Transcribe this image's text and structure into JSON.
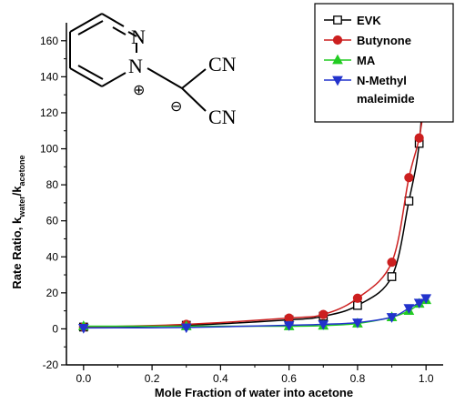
{
  "chart_data": {
    "type": "line",
    "xlabel": "Mole Fraction of water into acetone",
    "ylabel": "Rate Ratio, k",
    "ylabel_sub1": "water",
    "ylabel_mid": "/k",
    "ylabel_sub2": "acetone",
    "xlim": [
      -0.05,
      1.05
    ],
    "ylim": [
      -20,
      170
    ],
    "x_ticks": [
      "0.0",
      "0.2",
      "0.4",
      "0.6",
      "0.8",
      "1.0"
    ],
    "x_tick_values": [
      0,
      0.2,
      0.4,
      0.6,
      0.8,
      1.0
    ],
    "y_ticks": [
      "-20",
      "0",
      "20",
      "40",
      "60",
      "80",
      "100",
      "120",
      "140",
      "160"
    ],
    "y_tick_values": [
      -20,
      0,
      20,
      40,
      60,
      80,
      100,
      120,
      140,
      160
    ],
    "grid": false,
    "legend_position": "top-right",
    "series": [
      {
        "name": "EVK",
        "marker": "square-open",
        "color": "#000000",
        "x": [
          0,
          0.3,
          0.6,
          0.7,
          0.8,
          0.9,
          0.95,
          0.98,
          1.0
        ],
        "y": [
          1,
          2,
          5,
          7,
          13,
          29,
          71,
          103,
          157
        ]
      },
      {
        "name": "Butynone",
        "marker": "circle",
        "color": "#cc1f1f",
        "x": [
          0,
          0.3,
          0.6,
          0.7,
          0.8,
          0.9,
          0.95,
          0.98,
          1.0
        ],
        "y": [
          1,
          2.5,
          6,
          8,
          17,
          37,
          84,
          106,
          132
        ]
      },
      {
        "name": "MA",
        "marker": "triangle-up",
        "color": "#22cc22",
        "x": [
          0,
          0.3,
          0.6,
          0.7,
          0.8,
          0.9,
          0.95,
          0.98,
          1.0
        ],
        "y": [
          1.5,
          1.5,
          1.5,
          1.8,
          3,
          6.5,
          10,
          14,
          16
        ]
      },
      {
        "name": "N-Methyl maleimide",
        "legend_lines": [
          "N-Methyl",
          "maleimide"
        ],
        "marker": "triangle-down",
        "color": "#2233cc",
        "x": [
          0,
          0.3,
          0.6,
          0.7,
          0.8,
          0.9,
          0.95,
          0.98,
          1.0
        ],
        "y": [
          0.5,
          0.8,
          2,
          2.5,
          3.5,
          6.5,
          11.5,
          14.5,
          17
        ]
      }
    ]
  },
  "molecule": {
    "atoms": [
      "N",
      "N",
      "CN",
      "CN"
    ],
    "charges": [
      "⊕",
      "⊖"
    ]
  }
}
